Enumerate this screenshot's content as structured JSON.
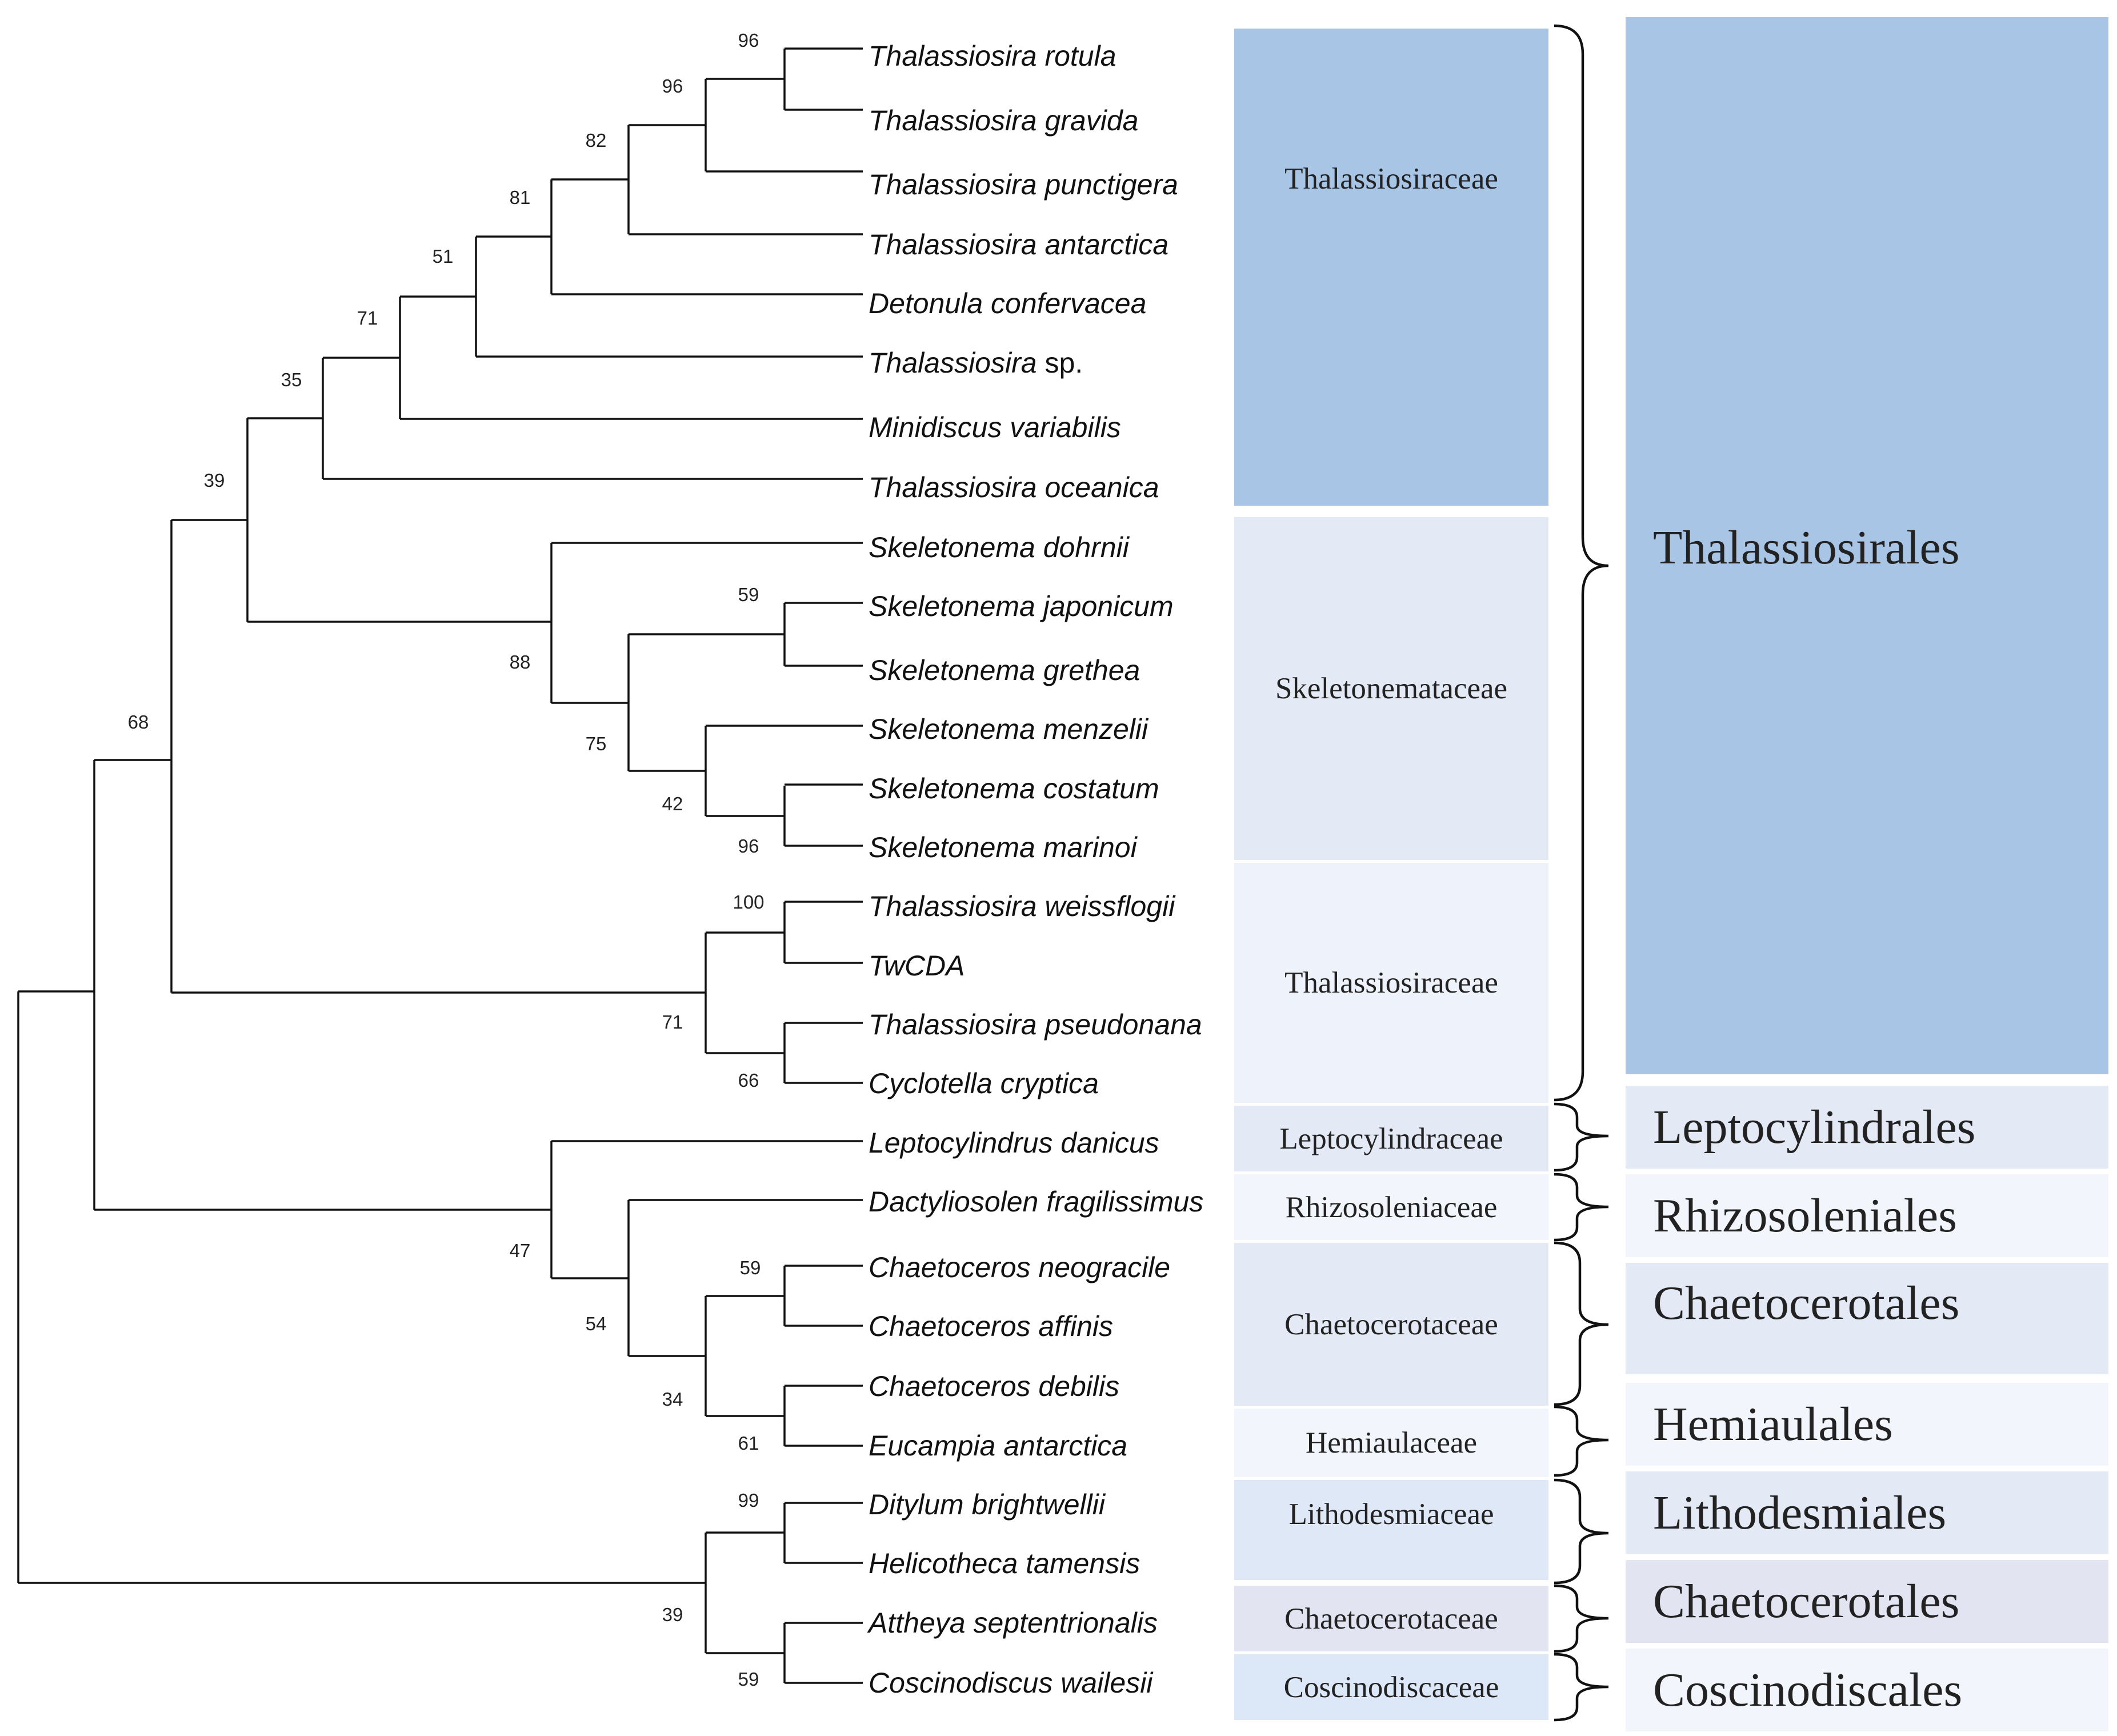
{
  "taxa": [
    {
      "genus": "Thalassiosira rotula",
      "suffix": ""
    },
    {
      "genus": "Thalassiosira gravida",
      "suffix": ""
    },
    {
      "genus": "Thalassiosira punctigera",
      "suffix": ""
    },
    {
      "genus": "Thalassiosira antarctica",
      "suffix": ""
    },
    {
      "genus": "Detonula confervacea",
      "suffix": ""
    },
    {
      "genus": "Thalassiosira",
      "suffix": " sp."
    },
    {
      "genus": "Minidiscus variabilis",
      "suffix": ""
    },
    {
      "genus": "Thalassiosira oceanica",
      "suffix": ""
    },
    {
      "genus": "Skeletonema dohrnii",
      "suffix": ""
    },
    {
      "genus": "Skeletonema japonicum",
      "suffix": ""
    },
    {
      "genus": "Skeletonema grethea",
      "suffix": ""
    },
    {
      "genus": "Skeletonema menzelii",
      "suffix": ""
    },
    {
      "genus": "Skeletonema costatum",
      "suffix": ""
    },
    {
      "genus": "Skeletonema marinoi",
      "suffix": ""
    },
    {
      "genus": "Thalassiosira weissflogii",
      "suffix": ""
    },
    {
      "genus": "TwCDA",
      "suffix": ""
    },
    {
      "genus": "Thalassiosira pseudonana",
      "suffix": ""
    },
    {
      "genus": "Cyclotella cryptica",
      "suffix": ""
    },
    {
      "genus": "Leptocylindrus danicus",
      "suffix": ""
    },
    {
      "genus": "Dactyliosolen fragilissimus",
      "suffix": ""
    },
    {
      "genus": "Chaetoceros neogracile",
      "suffix": ""
    },
    {
      "genus": "Chaetoceros affinis",
      "suffix": ""
    },
    {
      "genus": "Chaetoceros debilis",
      "suffix": ""
    },
    {
      "genus": "Eucampia antarctica",
      "suffix": ""
    },
    {
      "genus": "Ditylum brightwellii",
      "suffix": ""
    },
    {
      "genus": "Helicotheca tamensis",
      "suffix": ""
    },
    {
      "genus": "Attheya septentrionalis",
      "suffix": ""
    },
    {
      "genus": "Coscinodiscus wailesii",
      "suffix": ""
    }
  ],
  "bootstrap": [
    "96",
    "96",
    "82",
    "81",
    "51",
    "71",
    "35",
    "39",
    "59",
    "88",
    "75",
    "42",
    "96",
    "100",
    "71",
    "66",
    "68",
    "47",
    "59",
    "54",
    "34",
    "61",
    "99",
    "39",
    "59"
  ],
  "families": [
    {
      "label": "Thalassiosiraceae",
      "color": "#a8c5e6"
    },
    {
      "label": "Skeletonemataceae",
      "color": "#e3eaf5"
    },
    {
      "label": "Thalassiosiraceae",
      "color": "#eef2fa"
    },
    {
      "label": "Leptocylindraceae",
      "color": "#e3eaf5"
    },
    {
      "label": "Rhizosoleniaceae",
      "color": "#f2f5fb"
    },
    {
      "label": "Chaetocerotaceae",
      "color": "#e3eaf5"
    },
    {
      "label": "Hemiaulaceae",
      "color": "#f2f5fb"
    },
    {
      "label": "Lithodesmiaceae",
      "color": "#dfe8f6"
    },
    {
      "label": "Chaetocerotaceae",
      "color": "#e2e4f1"
    },
    {
      "label": "Coscinodiscaceae",
      "color": "#dce8f7"
    }
  ],
  "orders": [
    {
      "label": "Thalassiosirales",
      "color": "#a8c5e6"
    },
    {
      "label": "Leptocylindrales",
      "color": "#e3eaf5"
    },
    {
      "label": "Rhizosoleniales",
      "color": "#f2f5fb"
    },
    {
      "label": "Chaetocerotales",
      "color": "#e3eaf5"
    },
    {
      "label": "Hemiaulales",
      "color": "#f2f5fb"
    },
    {
      "label": "Lithodesmiales",
      "color": "#e3eaf5"
    },
    {
      "label": "Chaetocerotales",
      "color": "#e2e4f1"
    },
    {
      "label": "Coscinodiscales",
      "color": "#f2f5fb"
    }
  ]
}
